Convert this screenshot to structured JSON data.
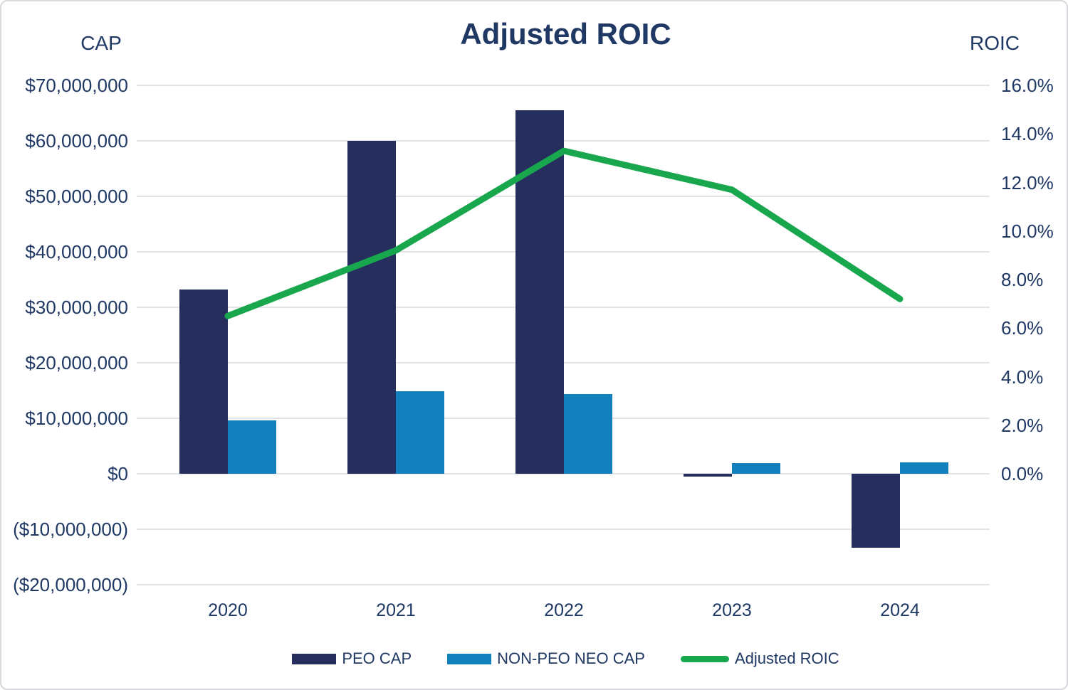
{
  "chart_data": {
    "type": "combo",
    "title": "Adjusted ROIC",
    "categories": [
      "2020",
      "2021",
      "2022",
      "2023",
      "2024"
    ],
    "left_axis": {
      "title": "CAP",
      "min": -20000000,
      "max": 70000000,
      "major_unit": 10000000,
      "tick_labels": [
        "$70,000,000",
        "$60,000,000",
        "$50,000,000",
        "$40,000,000",
        "$30,000,000",
        "$20,000,000",
        "$10,000,000",
        "$0",
        "($10,000,000)",
        "($20,000,000)"
      ]
    },
    "right_axis": {
      "title": "ROIC",
      "min": 0,
      "max": 16,
      "major_unit": 2,
      "tick_labels": [
        "16.0%",
        "14.0%",
        "12.0%",
        "10.0%",
        "8.0%",
        "6.0%",
        "4.0%",
        "2.0%",
        "0.0%"
      ],
      "tick_values": [
        16,
        14,
        12,
        10,
        8,
        6,
        4,
        2,
        0
      ]
    },
    "grid": true,
    "legend_position": "bottom",
    "series": [
      {
        "name": "PEO CAP",
        "type": "bar",
        "axis": "left",
        "color": "#262e5e",
        "values": [
          33200000,
          60000000,
          65500000,
          -500000,
          -13300000
        ]
      },
      {
        "name": "NON-PEO NEO CAP",
        "type": "bar",
        "axis": "left",
        "color": "#1380be",
        "values": [
          9600000,
          14900000,
          14400000,
          1900000,
          2100000
        ]
      },
      {
        "name": "Adjusted ROIC",
        "type": "line",
        "axis": "right",
        "color": "#19a74d",
        "values_pct": [
          6.5,
          9.2,
          13.3,
          11.7,
          7.2
        ]
      }
    ],
    "colors": {
      "text": "#1f3864",
      "gridline": "#e2e2e8",
      "frame_border": "#d8d8de",
      "background": "#ffffff"
    }
  }
}
